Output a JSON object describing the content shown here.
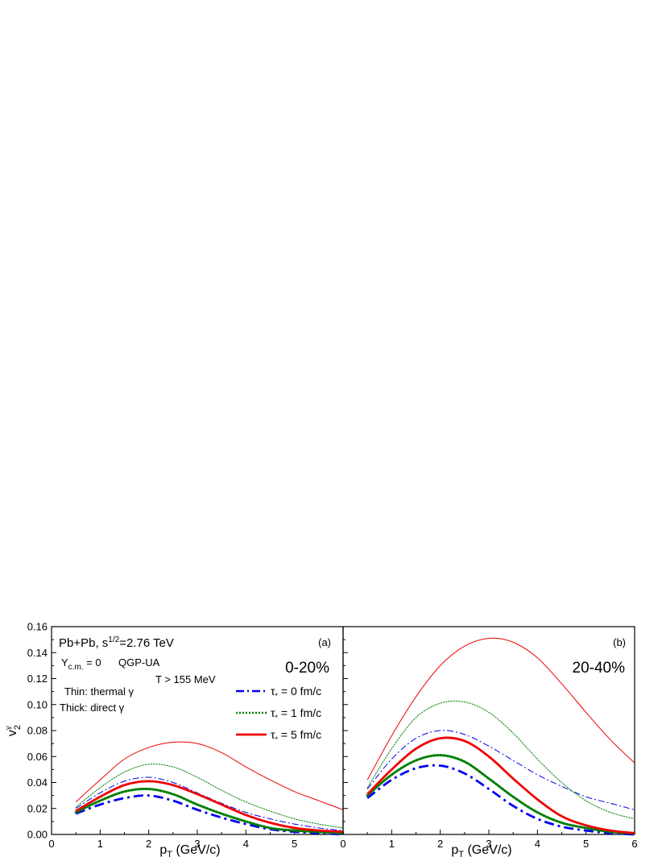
{
  "chart_data": [
    {
      "panel": "(a)",
      "type": "line",
      "title": "0-20%",
      "xlabel_main": "p",
      "xlabel_sub": "T",
      "xlabel_rest": " (GeV/c)",
      "ylabel_main": "v",
      "ylabel_sub": "2",
      "ylabel_sup": "γ",
      "xlim": [
        0,
        6
      ],
      "ylim": [
        0,
        0.16
      ],
      "xticks": [
        0,
        1,
        2,
        3,
        4,
        5
      ],
      "xtick_labels": [
        "0",
        "1",
        "2",
        "3",
        "4",
        "5"
      ],
      "yticks": [
        0,
        0.02,
        0.04,
        0.06,
        0.08,
        0.1,
        0.12,
        0.14,
        0.16
      ],
      "ytick_labels": [
        "0.00",
        "0.02",
        "0.04",
        "0.06",
        "0.08",
        "0.10",
        "0.12",
        "0.14",
        "0.16"
      ],
      "annotations": {
        "system_a": "Pb+Pb, s",
        "system_sup": "1/2",
        "system_b": "=2.76 TeV",
        "rapidity_main": "Y",
        "rapidity_sub": "c.m.",
        "rapidity_rest": " = 0",
        "model": "QGP-UA",
        "temperature": "T > 155 MeV",
        "thin_note": "Thin: thermal γ",
        "thick_note": "Thick: direct γ"
      },
      "legend": [
        {
          "symbol": "τ",
          "sub": "*",
          "text": " = 0 fm/c",
          "color": "#0000ee",
          "dash": "dashdot"
        },
        {
          "symbol": "τ",
          "sub": "*",
          "text": " = 1 fm/c",
          "color": "#008000",
          "dash": "dot"
        },
        {
          "symbol": "τ",
          "sub": "*",
          "text": " = 5 fm/c",
          "color": "#ee0000",
          "dash": "solid"
        }
      ],
      "series": [
        {
          "tau": 0,
          "kind": "thermal",
          "color": "#0000ee",
          "dash": "dashdot",
          "width": "thin",
          "x": [
            0.5,
            1,
            1.5,
            2,
            2.5,
            3,
            3.5,
            4,
            4.5,
            5,
            5.5,
            6
          ],
          "y": [
            0.02,
            0.032,
            0.041,
            0.044,
            0.04,
            0.032,
            0.024,
            0.017,
            0.012,
            0.008,
            0.005,
            0.003
          ]
        },
        {
          "tau": 1,
          "kind": "thermal",
          "color": "#008000",
          "dash": "dot",
          "width": "thin",
          "x": [
            0.5,
            1,
            1.5,
            2,
            2.5,
            3,
            3.5,
            4,
            4.5,
            5,
            5.5,
            6
          ],
          "y": [
            0.021,
            0.036,
            0.048,
            0.054,
            0.052,
            0.044,
            0.034,
            0.025,
            0.018,
            0.012,
            0.008,
            0.005
          ]
        },
        {
          "tau": 5,
          "kind": "thermal",
          "color": "#ee0000",
          "dash": "solid",
          "width": "thin",
          "x": [
            0.5,
            1,
            1.5,
            2,
            2.5,
            3,
            3.5,
            4,
            4.5,
            5,
            5.5,
            6
          ],
          "y": [
            0.025,
            0.042,
            0.058,
            0.067,
            0.071,
            0.07,
            0.063,
            0.052,
            0.042,
            0.033,
            0.026,
            0.019
          ]
        },
        {
          "tau": 0,
          "kind": "direct",
          "color": "#0000ee",
          "dash": "dashdot",
          "width": "thick",
          "x": [
            0.5,
            1,
            1.5,
            2,
            2.5,
            3,
            3.5,
            4,
            4.5,
            5,
            5.5,
            6
          ],
          "y": [
            0.016,
            0.023,
            0.028,
            0.03,
            0.026,
            0.019,
            0.013,
            0.008,
            0.004,
            0.002,
            0.001,
            0.0
          ]
        },
        {
          "tau": 1,
          "kind": "direct",
          "color": "#008000",
          "dash": "dot",
          "width": "thick",
          "x": [
            0.5,
            1,
            1.5,
            2,
            2.5,
            3,
            3.5,
            4,
            4.5,
            5,
            5.5,
            6
          ],
          "y": [
            0.017,
            0.026,
            0.033,
            0.035,
            0.031,
            0.023,
            0.016,
            0.01,
            0.005,
            0.003,
            0.002,
            0.001
          ]
        },
        {
          "tau": 5,
          "kind": "direct",
          "color": "#ee0000",
          "dash": "solid",
          "width": "thick",
          "x": [
            0.5,
            1,
            1.5,
            2,
            2.5,
            3,
            3.5,
            4,
            4.5,
            5,
            5.5,
            6
          ],
          "y": [
            0.018,
            0.029,
            0.038,
            0.041,
            0.038,
            0.031,
            0.023,
            0.015,
            0.009,
            0.005,
            0.003,
            0.002
          ]
        }
      ]
    },
    {
      "panel": "(b)",
      "type": "line",
      "title": "20-40%",
      "xlabel_main": "p",
      "xlabel_sub": "T",
      "xlabel_rest": " (GeV/c)",
      "xlim": [
        0,
        6
      ],
      "ylim": [
        0,
        0.16
      ],
      "xticks": [
        0,
        1,
        2,
        3,
        4,
        5,
        6
      ],
      "xtick_labels": [
        "",
        "1",
        "2",
        "3",
        "4",
        "5",
        "6"
      ],
      "series": [
        {
          "tau": 0,
          "kind": "thermal",
          "color": "#0000ee",
          "dash": "dashdot",
          "width": "thin",
          "x": [
            0.5,
            1,
            1.5,
            2,
            2.5,
            3,
            3.5,
            4,
            4.5,
            5,
            5.5,
            6
          ],
          "y": [
            0.035,
            0.058,
            0.074,
            0.08,
            0.077,
            0.068,
            0.057,
            0.046,
            0.037,
            0.029,
            0.024,
            0.019
          ]
        },
        {
          "tau": 1,
          "kind": "thermal",
          "color": "#008000",
          "dash": "dot",
          "width": "thin",
          "x": [
            0.5,
            1,
            1.5,
            2,
            2.5,
            3,
            3.5,
            4,
            4.5,
            5,
            5.5,
            6
          ],
          "y": [
            0.036,
            0.066,
            0.09,
            0.101,
            0.102,
            0.094,
            0.078,
            0.058,
            0.04,
            0.026,
            0.017,
            0.012
          ]
        },
        {
          "tau": 5,
          "kind": "thermal",
          "color": "#ee0000",
          "dash": "solid",
          "width": "thin",
          "x": [
            0.5,
            1,
            1.5,
            2,
            2.5,
            3,
            3.5,
            4,
            4.5,
            5,
            5.5,
            6
          ],
          "y": [
            0.042,
            0.076,
            0.106,
            0.13,
            0.145,
            0.151,
            0.148,
            0.136,
            0.116,
            0.094,
            0.073,
            0.055
          ]
        },
        {
          "tau": 0,
          "kind": "direct",
          "color": "#0000ee",
          "dash": "dashdot",
          "width": "thick",
          "x": [
            0.5,
            1,
            1.5,
            2,
            2.5,
            3,
            3.5,
            4,
            4.5,
            5,
            5.5,
            6
          ],
          "y": [
            0.028,
            0.042,
            0.051,
            0.053,
            0.047,
            0.035,
            0.022,
            0.012,
            0.006,
            0.003,
            0.001,
            0.0
          ]
        },
        {
          "tau": 1,
          "kind": "direct",
          "color": "#008000",
          "dash": "dot",
          "width": "thick",
          "x": [
            0.5,
            1,
            1.5,
            2,
            2.5,
            3,
            3.5,
            4,
            4.5,
            5,
            5.5,
            6
          ],
          "y": [
            0.03,
            0.046,
            0.057,
            0.061,
            0.056,
            0.043,
            0.029,
            0.017,
            0.009,
            0.005,
            0.002,
            0.001
          ]
        },
        {
          "tau": 5,
          "kind": "direct",
          "color": "#ee0000",
          "dash": "solid",
          "width": "thick",
          "x": [
            0.5,
            1,
            1.5,
            2,
            2.5,
            3,
            3.5,
            4,
            4.5,
            5,
            5.5,
            6
          ],
          "y": [
            0.031,
            0.05,
            0.066,
            0.074,
            0.072,
            0.06,
            0.043,
            0.027,
            0.014,
            0.007,
            0.003,
            0.001
          ]
        }
      ]
    }
  ]
}
